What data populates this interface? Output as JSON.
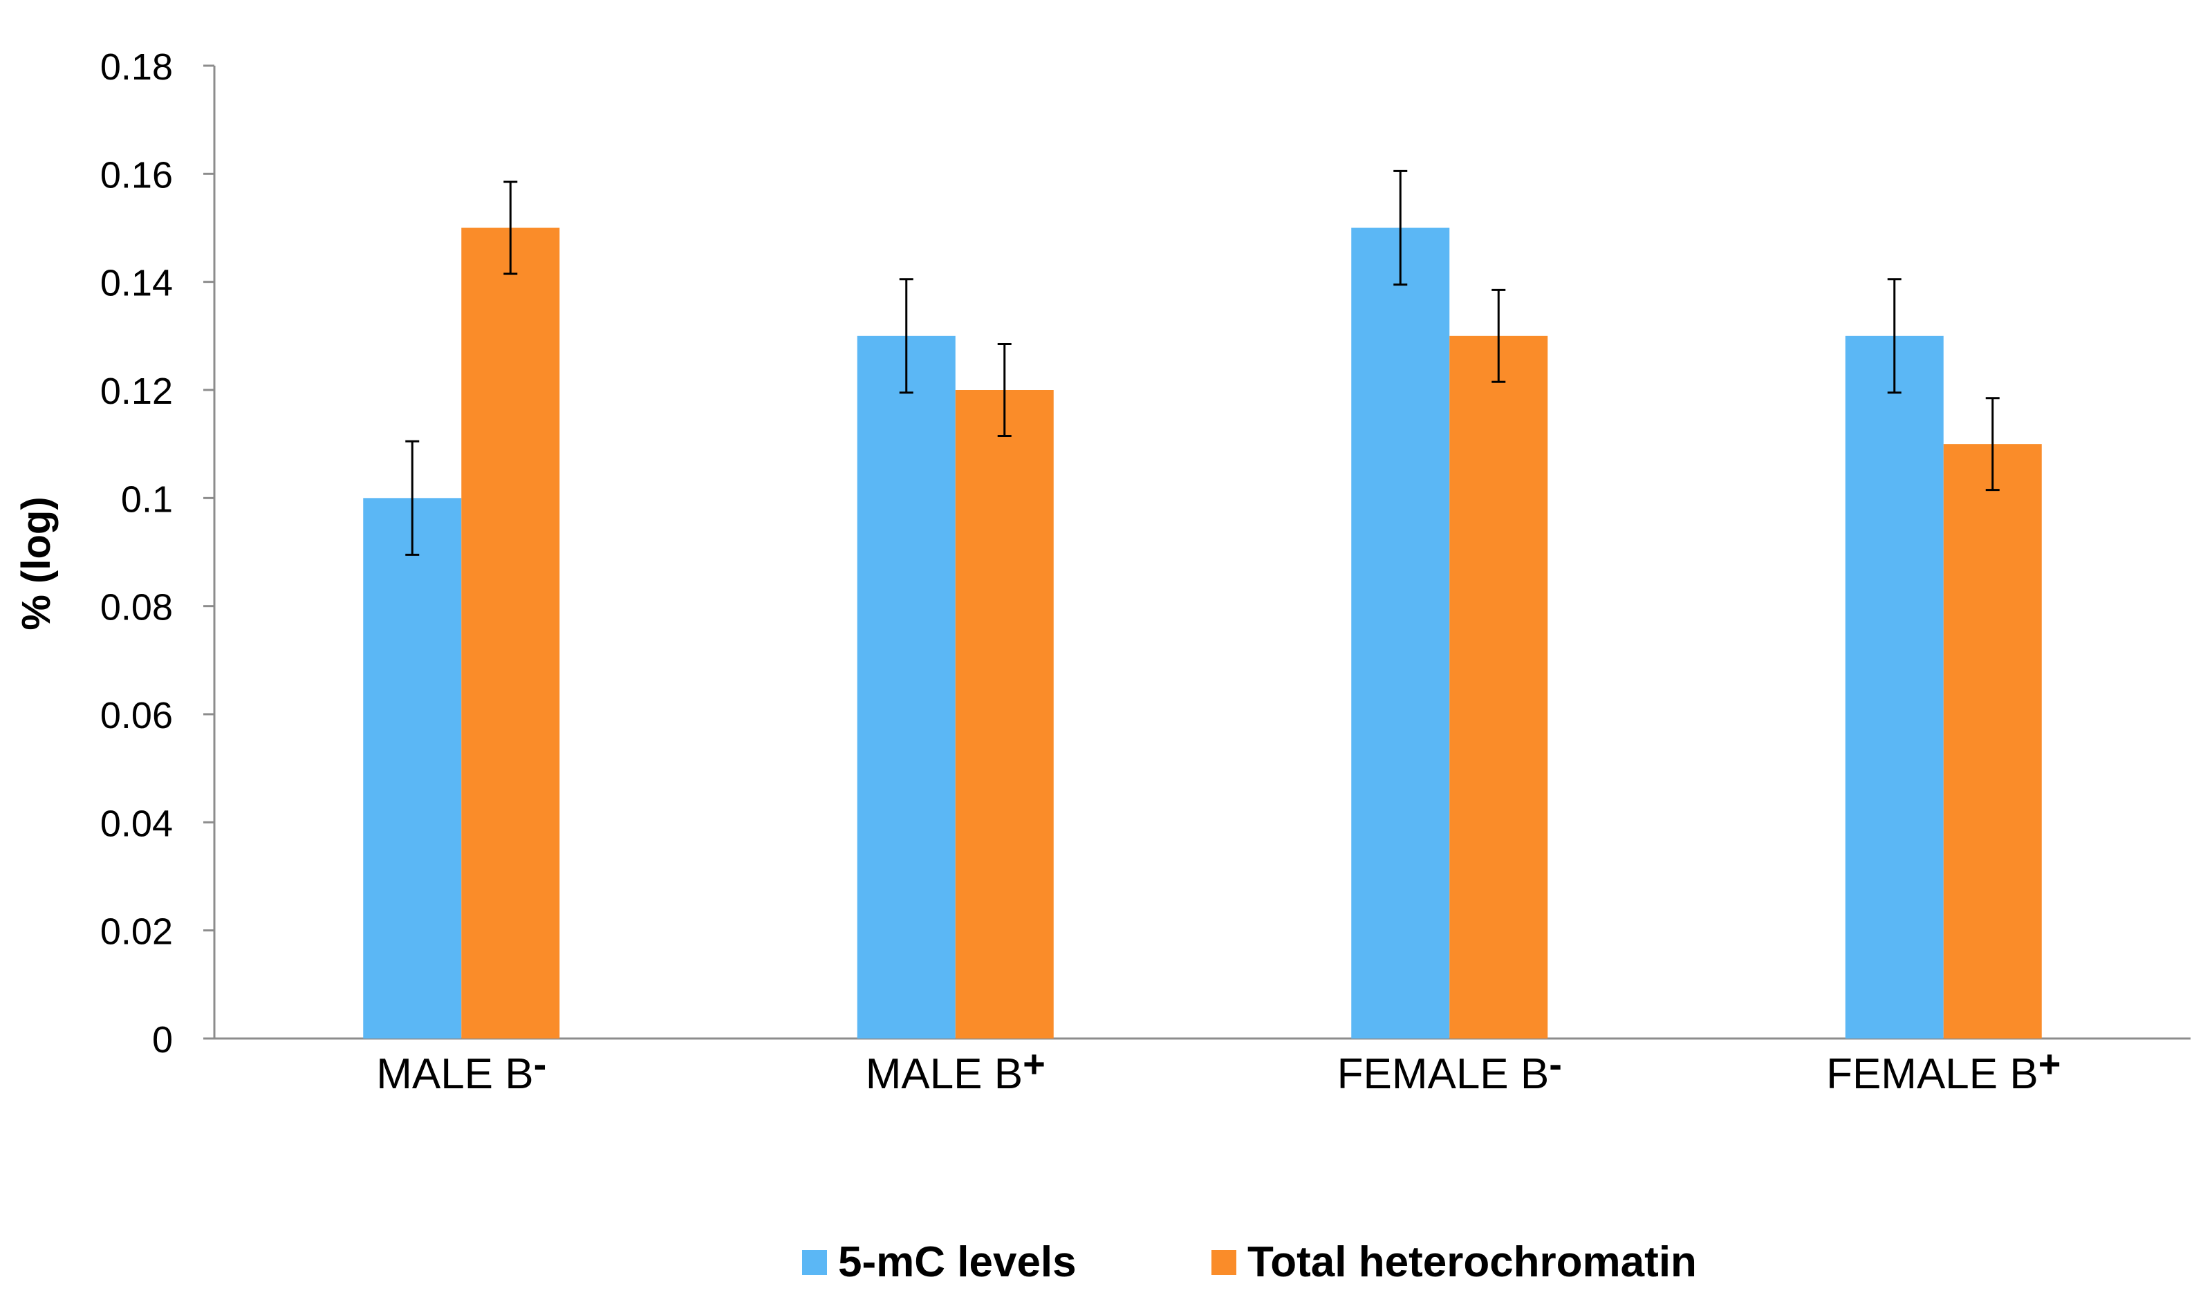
{
  "chart_data": {
    "type": "bar",
    "title": "",
    "xlabel": "",
    "ylabel": "% (log)",
    "ylim": [
      0,
      0.18
    ],
    "yticks": [
      "0",
      "0.02",
      "0.04",
      "0.06",
      "0.08",
      "0.1",
      "0.12",
      "0.14",
      "0.16",
      "0.18"
    ],
    "ytick_values": [
      0,
      0.02,
      0.04,
      0.06,
      0.08,
      0.1,
      0.12,
      0.14,
      0.16,
      0.18
    ],
    "categories": [
      {
        "base": "MALE B",
        "sup": "-"
      },
      {
        "base": "MALE B",
        "sup": "+"
      },
      {
        "base": "FEMALE B",
        "sup": "-"
      },
      {
        "base": "FEMALE B",
        "sup": "+"
      }
    ],
    "series": [
      {
        "name": "5-mC levels",
        "color": "#5bb7f5",
        "values": [
          0.1,
          0.13,
          0.15,
          0.13
        ],
        "errors": [
          0.0105,
          0.0105,
          0.0105,
          0.0105
        ]
      },
      {
        "name": "Total heterochromatin",
        "color": "#fa8c29",
        "values": [
          0.15,
          0.12,
          0.13,
          0.11
        ],
        "errors": [
          0.0085,
          0.0085,
          0.0085,
          0.0085
        ]
      }
    ],
    "legend_position": "bottom-center",
    "grid": false
  }
}
